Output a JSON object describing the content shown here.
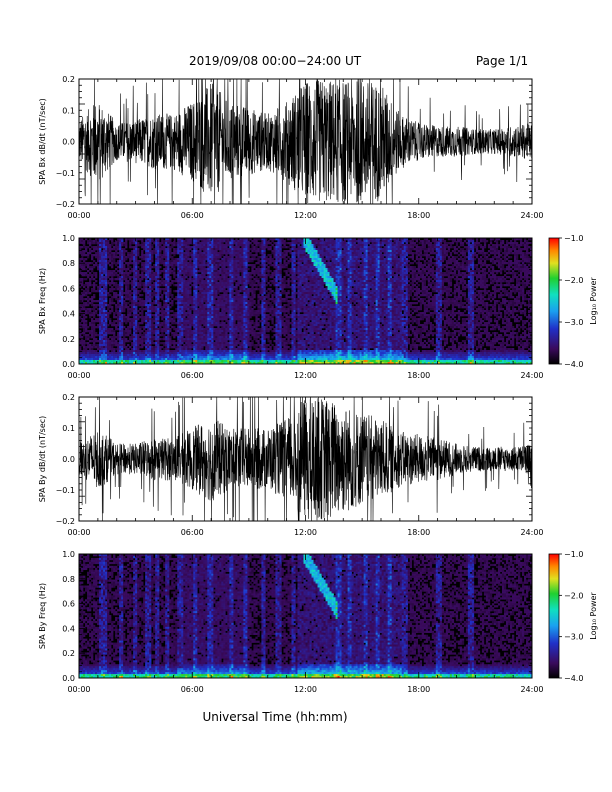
{
  "header": {
    "title": "2019/09/08  00:00−24:00 UT",
    "page": "Page 1/1"
  },
  "footer": {
    "xlabel": "Universal Time (hh:mm)"
  },
  "colorbar": {
    "label": "Log₁₀ Power",
    "ticks": [
      "−1.0",
      "−2.0",
      "−3.0",
      "−4.0"
    ]
  },
  "chart_data": [
    {
      "type": "line",
      "ylabel": "SPA Bx dB/dt (nT/sec)",
      "xlim": [
        0,
        24
      ],
      "ylim": [
        -0.2,
        0.2
      ],
      "xticks": [
        "00:00",
        "06:00",
        "12:00",
        "18:00",
        "24:00"
      ],
      "yticks": [
        "0.2",
        "0.1",
        "0.0",
        "−0.1",
        "−0.2"
      ],
      "envelope": {
        "x_hours": [
          0,
          1,
          2,
          3,
          4,
          5,
          6,
          7,
          8,
          9,
          10,
          11,
          12,
          13,
          14,
          15,
          16,
          17,
          18,
          19,
          20,
          21,
          22,
          23,
          24
        ],
        "amplitude": [
          0.07,
          0.14,
          0.06,
          0.07,
          0.09,
          0.09,
          0.13,
          0.19,
          0.13,
          0.11,
          0.09,
          0.13,
          0.2,
          0.2,
          0.2,
          0.2,
          0.19,
          0.09,
          0.06,
          0.05,
          0.05,
          0.04,
          0.04,
          0.05,
          0.06
        ]
      }
    },
    {
      "type": "heatmap",
      "ylabel": "SPA Bx Freq (Hz)",
      "xlim": [
        0,
        24
      ],
      "ylim": [
        0.0,
        1.0
      ],
      "zlim": [
        -4.0,
        -1.0
      ],
      "xticks": [
        "00:00",
        "06:00",
        "12:00",
        "18:00",
        "24:00"
      ],
      "yticks": [
        "1.0",
        "0.8",
        "0.6",
        "0.4",
        "0.2",
        "0.0"
      ]
    },
    {
      "type": "line",
      "ylabel": "SPA By dB/dt (nT/sec)",
      "xlim": [
        0,
        24
      ],
      "ylim": [
        -0.2,
        0.2
      ],
      "xticks": [
        "00:00",
        "06:00",
        "12:00",
        "18:00",
        "24:00"
      ],
      "yticks": [
        "0.2",
        "0.1",
        "0.0",
        "−0.1",
        "−0.2"
      ],
      "envelope": {
        "x_hours": [
          0,
          1,
          2,
          3,
          4,
          5,
          6,
          7,
          8,
          9,
          10,
          11,
          12,
          13,
          14,
          15,
          16,
          17,
          18,
          19,
          20,
          21,
          22,
          23,
          24
        ],
        "amplitude": [
          0.05,
          0.1,
          0.05,
          0.05,
          0.07,
          0.07,
          0.1,
          0.14,
          0.1,
          0.1,
          0.1,
          0.13,
          0.2,
          0.2,
          0.18,
          0.15,
          0.13,
          0.09,
          0.08,
          0.07,
          0.05,
          0.04,
          0.04,
          0.04,
          0.05
        ]
      }
    },
    {
      "type": "heatmap",
      "ylabel": "SPA By Freq (Hz)",
      "xlim": [
        0,
        24
      ],
      "ylim": [
        0.0,
        1.0
      ],
      "zlim": [
        -4.0,
        -1.0
      ],
      "xticks": [
        "00:00",
        "06:00",
        "12:00",
        "18:00",
        "24:00"
      ],
      "yticks": [
        "1.0",
        "0.8",
        "0.6",
        "0.4",
        "0.2",
        "0.0"
      ]
    }
  ]
}
